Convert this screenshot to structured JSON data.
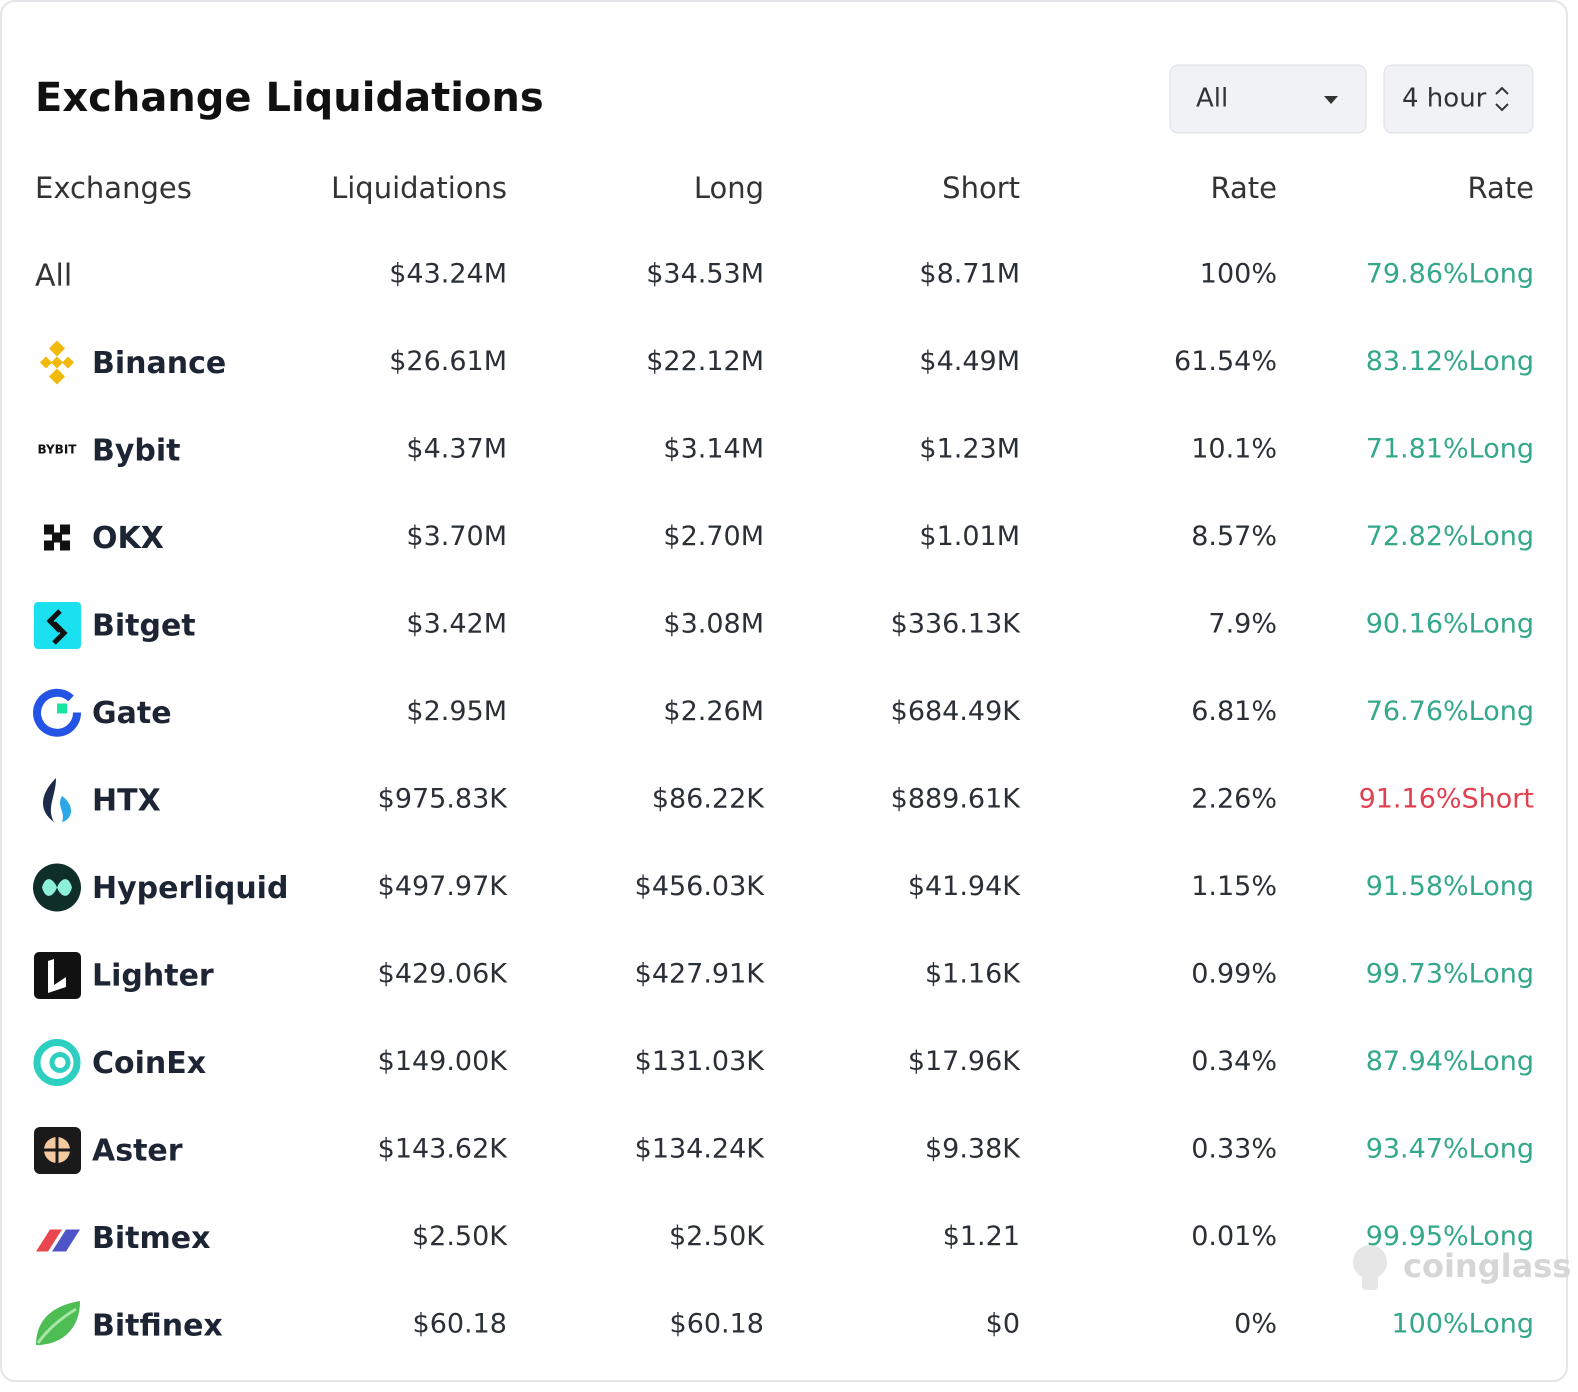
{
  "header": {
    "title": "Exchange Liquidations",
    "filter": "All",
    "interval": "4 hour"
  },
  "watermark": "coinglass",
  "table": {
    "columns": [
      "Exchanges",
      "Liquidations",
      "Long",
      "Short",
      "Rate",
      "Rate"
    ],
    "rows": [
      {
        "exchange": "All",
        "liquidations": "$43.24M",
        "long": "$34.53M",
        "short": "$8.71M",
        "rate": "100%",
        "ratio": "79.86%Long",
        "ratio_color": "#34a88a"
      },
      {
        "exchange": "Binance",
        "liquidations": "$26.61M",
        "long": "$22.12M",
        "short": "$4.49M",
        "rate": "61.54%",
        "ratio": "83.12%Long",
        "ratio_color": "#34a88a"
      },
      {
        "exchange": "Bybit",
        "logo_text": "BYBIT",
        "liquidations": "$4.37M",
        "long": "$3.14M",
        "short": "$1.23M",
        "rate": "10.1%",
        "ratio": "71.81%Long",
        "ratio_color": "#34a88a"
      },
      {
        "exchange": "OKX",
        "liquidations": "$3.70M",
        "long": "$2.70M",
        "short": "$1.01M",
        "rate": "8.57%",
        "ratio": "72.82%Long",
        "ratio_color": "#34a88a"
      },
      {
        "exchange": "Bitget",
        "liquidations": "$3.42M",
        "long": "$3.08M",
        "short": "$336.13K",
        "rate": "7.9%",
        "ratio": "90.16%Long",
        "ratio_color": "#34a88a"
      },
      {
        "exchange": "Gate",
        "liquidations": "$2.95M",
        "long": "$2.26M",
        "short": "$684.49K",
        "rate": "6.81%",
        "ratio": "76.76%Long",
        "ratio_color": "#34a88a"
      },
      {
        "exchange": "HTX",
        "liquidations": "$975.83K",
        "long": "$86.22K",
        "short": "$889.61K",
        "rate": "2.26%",
        "ratio": "91.16%Short",
        "ratio_color": "#e0404f"
      },
      {
        "exchange": "Hyperliquid",
        "liquidations": "$497.97K",
        "long": "$456.03K",
        "short": "$41.94K",
        "rate": "1.15%",
        "ratio": "91.58%Long",
        "ratio_color": "#34a88a"
      },
      {
        "exchange": "Lighter",
        "liquidations": "$429.06K",
        "long": "$427.91K",
        "short": "$1.16K",
        "rate": "0.99%",
        "ratio": "99.73%Long",
        "ratio_color": "#34a88a"
      },
      {
        "exchange": "CoinEx",
        "liquidations": "$149.00K",
        "long": "$131.03K",
        "short": "$17.96K",
        "rate": "0.34%",
        "ratio": "87.94%Long",
        "ratio_color": "#34a88a"
      },
      {
        "exchange": "Aster",
        "liquidations": "$143.62K",
        "long": "$134.24K",
        "short": "$9.38K",
        "rate": "0.33%",
        "ratio": "93.47%Long",
        "ratio_color": "#34a88a"
      },
      {
        "exchange": "Bitmex",
        "liquidations": "$2.50K",
        "long": "$2.50K",
        "short": "$1.21",
        "rate": "0.01%",
        "ratio": "99.95%Long",
        "ratio_color": "#34a88a"
      },
      {
        "exchange": "Bitfinex",
        "liquidations": "$60.18",
        "long": "$60.18",
        "short": "$0",
        "rate": "0%",
        "ratio": "100%Long",
        "ratio_color": "#34a88a"
      }
    ]
  }
}
